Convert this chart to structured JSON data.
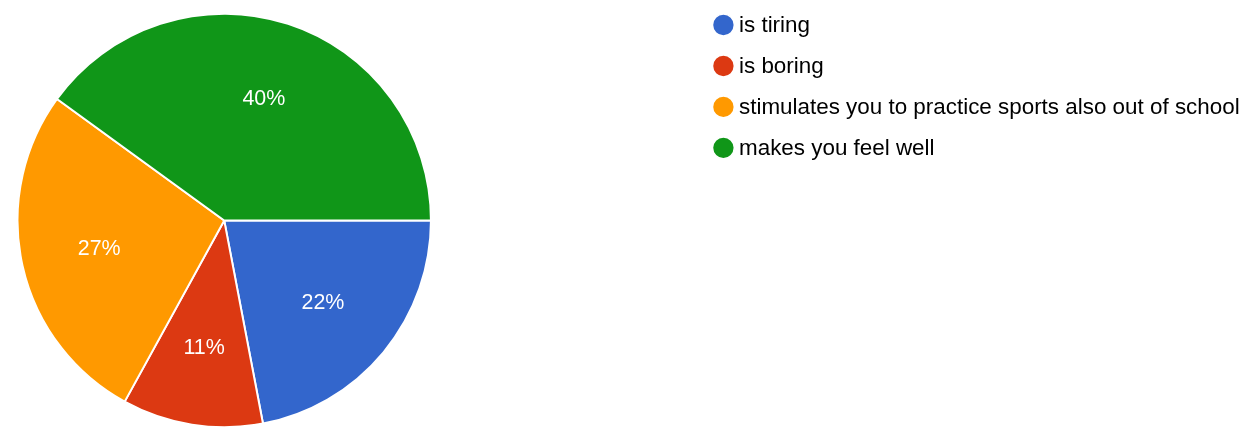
{
  "chart_data": {
    "type": "pie",
    "categories": [
      "is tiring",
      "is boring",
      "stimulates you to practice sports also out of school",
      "makes you feel well"
    ],
    "values": [
      22,
      11,
      27,
      40
    ],
    "colors": [
      "#3366cc",
      "#dc3912",
      "#ff9900",
      "#109618"
    ],
    "value_labels": [
      "22%",
      "11%",
      "27%",
      "40%"
    ],
    "legend": "right"
  }
}
